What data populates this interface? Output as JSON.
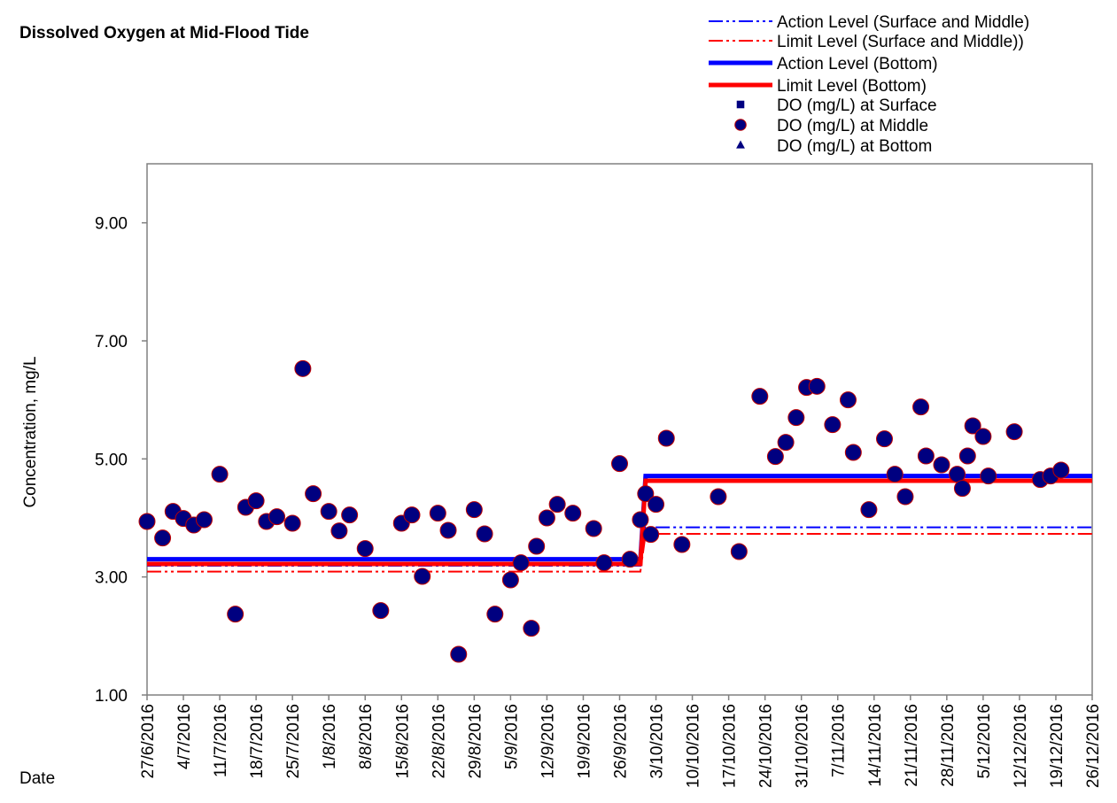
{
  "chart_data": {
    "type": "scatter",
    "title": "Dissolved Oxygen at Mid-Flood Tide",
    "ylabel": "Concentration, mg/L",
    "xlabel": "Date",
    "ylim": [
      1,
      10
    ],
    "yticks": [
      {
        "value": 1,
        "label": "1.00"
      },
      {
        "value": 3,
        "label": "3.00"
      },
      {
        "value": 5,
        "label": "5.00"
      },
      {
        "value": 7,
        "label": "7.00"
      },
      {
        "value": 9,
        "label": "9.00"
      }
    ],
    "xlim": [
      "27/6/2016",
      "26/12/2016"
    ],
    "xticks": [
      "27/6/2016",
      "4/7/2016",
      "11/7/2016",
      "18/7/2016",
      "25/7/2016",
      "1/8/2016",
      "8/8/2016",
      "15/8/2016",
      "22/8/2016",
      "29/8/2016",
      "5/9/2016",
      "12/9/2016",
      "19/9/2016",
      "26/9/2016",
      "3/10/2016",
      "10/10/2016",
      "17/10/2016",
      "24/10/2016",
      "31/10/2016",
      "7/11/2016",
      "14/11/2016",
      "21/11/2016",
      "28/11/2016",
      "5/12/2016",
      "12/12/2016",
      "19/12/2016",
      "26/12/2016"
    ],
    "legend": "upper right",
    "series": [
      {
        "name": "Action Level (Surface and Middle)",
        "color": "#0000ff",
        "style": "dashdot",
        "width": 2,
        "x": [
          "27/6/2016",
          "30/9/2016",
          "1/10/2016",
          "26/12/2016"
        ],
        "values": [
          3.19,
          3.19,
          3.84,
          3.84
        ]
      },
      {
        "name": "Limit Level (Surface and Middle))",
        "color": "#ff0000",
        "style": "dashdot",
        "width": 2,
        "x": [
          "27/6/2016",
          "30/9/2016",
          "1/10/2016",
          "26/12/2016"
        ],
        "values": [
          3.09,
          3.09,
          3.73,
          3.73
        ]
      },
      {
        "name": "Action Level (Bottom)",
        "color": "#0000ff",
        "style": "solid",
        "width": 5,
        "x": [
          "27/6/2016",
          "30/9/2016",
          "1/10/2016",
          "26/12/2016"
        ],
        "values": [
          3.3,
          3.3,
          4.71,
          4.71
        ]
      },
      {
        "name": "Limit Level (Bottom)",
        "color": "#ff0000",
        "style": "solid",
        "width": 5,
        "x": [
          "27/6/2016",
          "30/9/2016",
          "1/10/2016",
          "26/12/2016"
        ],
        "values": [
          3.22,
          3.22,
          4.63,
          4.63
        ]
      },
      {
        "name": "DO (mg/L) at Surface",
        "color": "#000080",
        "marker": "square",
        "x": [],
        "values": []
      },
      {
        "name": "DO (mg/L) at Middle",
        "color": "#000080",
        "edgecolor": "#c00000",
        "marker": "circle",
        "x": [
          "27/6/2016",
          "30/6/2016",
          "2/7/2016",
          "4/7/2016",
          "6/7/2016",
          "8/7/2016",
          "11/7/2016",
          "14/7/2016",
          "16/7/2016",
          "18/7/2016",
          "20/7/2016",
          "22/7/2016",
          "25/7/2016",
          "27/7/2016",
          "29/7/2016",
          "1/8/2016",
          "3/8/2016",
          "5/8/2016",
          "8/8/2016",
          "11/8/2016",
          "15/8/2016",
          "17/8/2016",
          "19/8/2016",
          "22/8/2016",
          "24/8/2016",
          "26/8/2016",
          "29/8/2016",
          "31/8/2016",
          "2/9/2016",
          "5/9/2016",
          "7/9/2016",
          "9/9/2016",
          "10/9/2016",
          "12/9/2016",
          "14/9/2016",
          "17/9/2016",
          "21/9/2016",
          "23/9/2016",
          "26/9/2016",
          "28/9/2016",
          "30/9/2016",
          "1/10/2016",
          "2/10/2016",
          "3/10/2016",
          "5/10/2016",
          "8/10/2016",
          "15/10/2016",
          "19/10/2016",
          "23/10/2016",
          "26/10/2016",
          "28/10/2016",
          "30/10/2016",
          "1/11/2016",
          "3/11/2016",
          "6/11/2016",
          "9/11/2016",
          "10/11/2016",
          "13/11/2016",
          "16/11/2016",
          "18/11/2016",
          "20/11/2016",
          "23/11/2016",
          "24/11/2016",
          "27/11/2016",
          "30/11/2016",
          "1/12/2016",
          "2/12/2016",
          "3/12/2016",
          "5/12/2016",
          "6/12/2016",
          "11/12/2016",
          "16/12/2016",
          "18/12/2016",
          "20/12/2016"
        ],
        "values": [
          3.94,
          3.66,
          4.11,
          3.99,
          3.88,
          3.97,
          4.74,
          2.37,
          4.18,
          4.29,
          3.94,
          4.02,
          3.91,
          6.53,
          4.41,
          4.11,
          3.78,
          4.05,
          3.48,
          2.43,
          3.91,
          4.05,
          3.01,
          4.08,
          3.79,
          1.69,
          4.14,
          3.73,
          2.37,
          2.95,
          3.24,
          2.13,
          3.52,
          4.0,
          4.23,
          4.08,
          3.82,
          3.24,
          4.92,
          3.3,
          3.97,
          4.41,
          3.72,
          4.23,
          5.35,
          3.55,
          4.36,
          3.43,
          6.06,
          5.04,
          5.28,
          5.7,
          6.21,
          6.23,
          5.58,
          6.0,
          5.11,
          4.14,
          5.34,
          4.74,
          4.36,
          5.88,
          5.05,
          4.9,
          4.74,
          4.5,
          5.05,
          5.56,
          5.38,
          4.71,
          5.46,
          4.65,
          4.71,
          4.81
        ]
      },
      {
        "name": "DO (mg/L) at Bottom",
        "color": "#000080",
        "marker": "triangle",
        "x": [],
        "values": []
      }
    ]
  }
}
